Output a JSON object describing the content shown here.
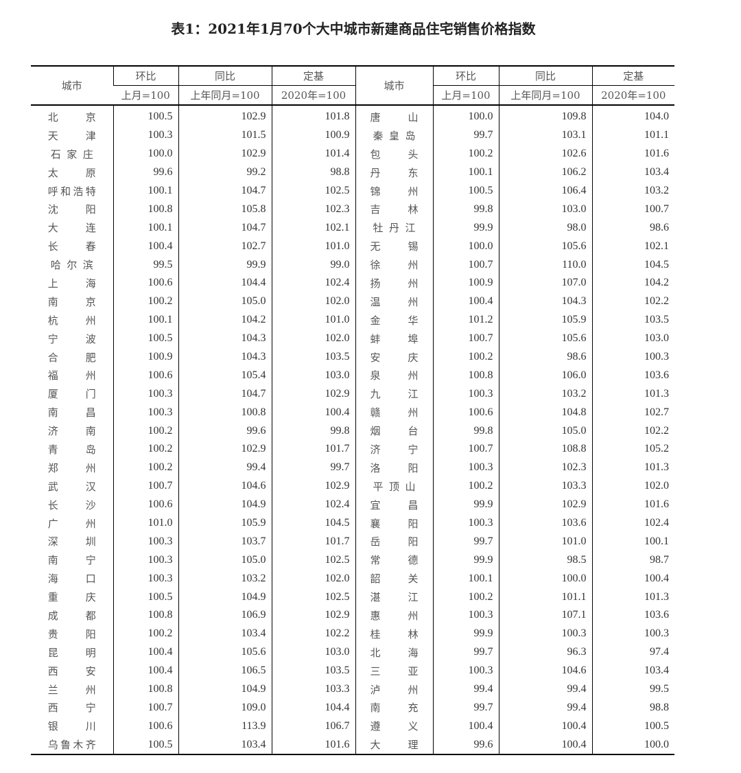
{
  "title": "表1：2021年1月70个大中城市新建商品住宅销售价格指数",
  "headers": {
    "city": "城市",
    "mom": "环比",
    "mom_base": "上月=100",
    "yoy": "同比",
    "yoy_base": "上年同月=100",
    "fixed": "定基",
    "fixed_base": "2020年=100"
  },
  "left_rows": [
    [
      "北京",
      "100.5",
      "102.9",
      "101.8"
    ],
    [
      "天津",
      "100.3",
      "101.5",
      "100.9"
    ],
    [
      "石家庄",
      "100.0",
      "102.9",
      "101.4"
    ],
    [
      "太原",
      "99.6",
      "99.2",
      "98.8"
    ],
    [
      "呼和浩特",
      "100.1",
      "104.7",
      "102.5"
    ],
    [
      "沈阳",
      "100.8",
      "105.8",
      "102.3"
    ],
    [
      "大连",
      "100.1",
      "104.7",
      "102.1"
    ],
    [
      "长春",
      "100.4",
      "102.7",
      "101.0"
    ],
    [
      "哈尔滨",
      "99.5",
      "99.9",
      "99.0"
    ],
    [
      "上海",
      "100.6",
      "104.4",
      "102.4"
    ],
    [
      "南京",
      "100.2",
      "105.0",
      "102.0"
    ],
    [
      "杭州",
      "100.1",
      "104.2",
      "101.0"
    ],
    [
      "宁波",
      "100.5",
      "104.3",
      "102.0"
    ],
    [
      "合肥",
      "100.9",
      "104.3",
      "103.5"
    ],
    [
      "福州",
      "100.6",
      "105.4",
      "103.0"
    ],
    [
      "厦门",
      "100.3",
      "104.7",
      "102.9"
    ],
    [
      "南昌",
      "100.3",
      "100.8",
      "100.4"
    ],
    [
      "济南",
      "100.2",
      "99.6",
      "99.8"
    ],
    [
      "青岛",
      "100.2",
      "102.9",
      "101.7"
    ],
    [
      "郑州",
      "100.2",
      "99.4",
      "99.7"
    ],
    [
      "武汉",
      "100.7",
      "104.6",
      "102.9"
    ],
    [
      "长沙",
      "100.6",
      "104.9",
      "102.4"
    ],
    [
      "广州",
      "101.0",
      "105.9",
      "104.5"
    ],
    [
      "深圳",
      "100.3",
      "103.7",
      "101.7"
    ],
    [
      "南宁",
      "100.3",
      "105.0",
      "102.5"
    ],
    [
      "海口",
      "100.3",
      "103.2",
      "102.0"
    ],
    [
      "重庆",
      "100.5",
      "104.9",
      "102.5"
    ],
    [
      "成都",
      "100.8",
      "106.9",
      "102.9"
    ],
    [
      "贵阳",
      "100.2",
      "103.4",
      "102.2"
    ],
    [
      "昆明",
      "100.4",
      "105.6",
      "103.0"
    ],
    [
      "西安",
      "100.4",
      "106.5",
      "103.5"
    ],
    [
      "兰州",
      "100.8",
      "104.9",
      "103.3"
    ],
    [
      "西宁",
      "100.7",
      "109.0",
      "104.4"
    ],
    [
      "银川",
      "100.6",
      "113.9",
      "106.7"
    ],
    [
      "乌鲁木齐",
      "100.5",
      "103.4",
      "101.6"
    ]
  ],
  "right_rows": [
    [
      "唐山",
      "100.0",
      "109.8",
      "104.0"
    ],
    [
      "秦皇岛",
      "99.7",
      "103.1",
      "101.1"
    ],
    [
      "包头",
      "100.2",
      "102.6",
      "101.6"
    ],
    [
      "丹东",
      "100.1",
      "106.2",
      "103.4"
    ],
    [
      "锦州",
      "100.5",
      "106.4",
      "103.2"
    ],
    [
      "吉林",
      "99.8",
      "103.0",
      "100.7"
    ],
    [
      "牡丹江",
      "99.9",
      "98.0",
      "98.6"
    ],
    [
      "无锡",
      "100.0",
      "105.6",
      "102.1"
    ],
    [
      "徐州",
      "100.7",
      "110.0",
      "104.5"
    ],
    [
      "扬州",
      "100.9",
      "107.0",
      "104.2"
    ],
    [
      "温州",
      "100.4",
      "104.3",
      "102.2"
    ],
    [
      "金华",
      "101.2",
      "105.9",
      "103.5"
    ],
    [
      "蚌埠",
      "100.7",
      "105.6",
      "103.0"
    ],
    [
      "安庆",
      "100.2",
      "98.6",
      "100.3"
    ],
    [
      "泉州",
      "100.8",
      "106.0",
      "103.6"
    ],
    [
      "九江",
      "100.3",
      "103.2",
      "101.3"
    ],
    [
      "赣州",
      "100.6",
      "104.8",
      "102.7"
    ],
    [
      "烟台",
      "99.8",
      "105.0",
      "102.2"
    ],
    [
      "济宁",
      "100.7",
      "108.8",
      "105.2"
    ],
    [
      "洛阳",
      "100.3",
      "102.3",
      "101.3"
    ],
    [
      "平顶山",
      "100.2",
      "103.3",
      "102.0"
    ],
    [
      "宜昌",
      "99.9",
      "102.9",
      "101.6"
    ],
    [
      "襄阳",
      "100.3",
      "103.6",
      "102.4"
    ],
    [
      "岳阳",
      "99.7",
      "101.0",
      "100.1"
    ],
    [
      "常德",
      "99.9",
      "98.5",
      "98.7"
    ],
    [
      "韶关",
      "100.1",
      "100.0",
      "100.4"
    ],
    [
      "湛江",
      "100.2",
      "101.1",
      "101.3"
    ],
    [
      "惠州",
      "100.3",
      "107.1",
      "103.6"
    ],
    [
      "桂林",
      "99.9",
      "100.3",
      "100.3"
    ],
    [
      "北海",
      "99.7",
      "96.3",
      "97.4"
    ],
    [
      "三亚",
      "100.3",
      "104.6",
      "103.4"
    ],
    [
      "泸州",
      "99.4",
      "99.4",
      "99.5"
    ],
    [
      "南充",
      "99.7",
      "99.4",
      "98.8"
    ],
    [
      "遵义",
      "100.4",
      "100.4",
      "100.5"
    ],
    [
      "大理",
      "99.6",
      "100.4",
      "100.0"
    ]
  ]
}
